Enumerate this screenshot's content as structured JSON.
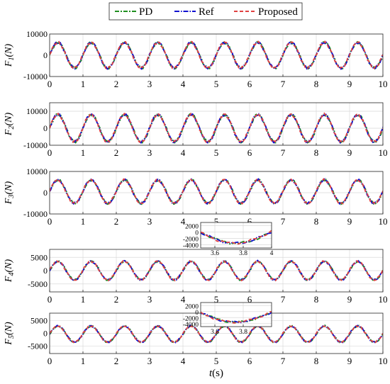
{
  "chart_data": [
    {
      "type": "line",
      "title": "",
      "ylabel": "F_1(N)",
      "xlabel": "",
      "xlim": [
        0,
        10
      ],
      "ylim": [
        -10000,
        10000
      ],
      "grid": true,
      "xticks": [
        "0",
        "1",
        "2",
        "3",
        "4",
        "5",
        "6",
        "7",
        "8",
        "9",
        "10"
      ],
      "yticks": [
        "10000",
        "0",
        "-10000"
      ],
      "series": [
        {
          "name": "PD",
          "color": "#1f8f1f",
          "amplitude": 6000,
          "offset": 0,
          "period": 1,
          "phase": 0
        },
        {
          "name": "Ref",
          "color": "#1010d0",
          "amplitude": 6000,
          "offset": 0,
          "period": 1,
          "phase": 0
        },
        {
          "name": "Proposed",
          "color": "#e04040",
          "amplitude": 6000,
          "offset": 0,
          "period": 1,
          "phase": 0
        }
      ]
    },
    {
      "type": "line",
      "title": "",
      "ylabel": "F_2(N)",
      "xlabel": "",
      "xlim": [
        0,
        10
      ],
      "ylim": [
        -10000,
        15000
      ],
      "grid": true,
      "xticks": [
        "0",
        "1",
        "2",
        "3",
        "4",
        "5",
        "6",
        "7",
        "8",
        "9",
        "10"
      ],
      "yticks": [
        "10000",
        "0",
        "-10000"
      ],
      "series": [
        {
          "name": "PD",
          "color": "#1f8f1f",
          "amplitude": 8000,
          "offset": 0,
          "period": 1,
          "phase": 0
        },
        {
          "name": "Ref",
          "color": "#1010d0",
          "amplitude": 8000,
          "offset": 0,
          "period": 1,
          "phase": 0
        },
        {
          "name": "Proposed",
          "color": "#e04040",
          "amplitude": 8000,
          "offset": 0,
          "period": 1,
          "phase": 0
        }
      ]
    },
    {
      "type": "line",
      "title": "",
      "ylabel": "F_3(N)",
      "xlabel": "",
      "xlim": [
        0,
        10
      ],
      "ylim": [
        -10000,
        10000
      ],
      "grid": true,
      "xticks": [
        "0",
        "1",
        "2",
        "3",
        "4",
        "5",
        "6",
        "7",
        "8",
        "9",
        "10"
      ],
      "yticks": [
        "10000",
        "0",
        "-10000"
      ],
      "series": [
        {
          "name": "PD",
          "color": "#1f8f1f",
          "amplitude": 5500,
          "offset": 500,
          "period": 1,
          "phase": 0
        },
        {
          "name": "Ref",
          "color": "#1010d0",
          "amplitude": 5500,
          "offset": 500,
          "period": 1,
          "phase": 0
        },
        {
          "name": "Proposed",
          "color": "#e04040",
          "amplitude": 5500,
          "offset": 500,
          "period": 1,
          "phase": 0
        }
      ]
    },
    {
      "type": "line",
      "title": "",
      "ylabel": "F_4(N)",
      "xlabel": "",
      "xlim": [
        0,
        10
      ],
      "ylim": [
        -8000,
        8000
      ],
      "grid": true,
      "xticks": [
        "0",
        "1",
        "2",
        "3",
        "4",
        "5",
        "6",
        "7",
        "8",
        "9",
        "10"
      ],
      "yticks": [
        "5000",
        "0",
        "-5000"
      ],
      "series": [
        {
          "name": "PD",
          "color": "#1f8f1f",
          "amplitude": 3500,
          "offset": 0,
          "period": 1,
          "phase": 0
        },
        {
          "name": "Ref",
          "color": "#1010d0",
          "amplitude": 3500,
          "offset": 0,
          "period": 1,
          "phase": 0
        },
        {
          "name": "Proposed",
          "color": "#e04040",
          "amplitude": 3500,
          "offset": 0,
          "period": 1,
          "phase": 0
        }
      ],
      "inset": {
        "xlim": [
          3.5,
          4.0
        ],
        "ylim": [
          -5000,
          3000
        ],
        "xticks": [
          "3.6",
          "3.8",
          "4"
        ],
        "yticks": [
          "2000",
          "0",
          "-2000",
          "-4000"
        ]
      }
    },
    {
      "type": "line",
      "title": "",
      "ylabel": "F_5(N)",
      "xlabel": "t(s)",
      "xlim": [
        0,
        10
      ],
      "ylim": [
        -8000,
        8000
      ],
      "grid": true,
      "xticks": [
        "0",
        "1",
        "2",
        "3",
        "4",
        "5",
        "6",
        "7",
        "8",
        "9",
        "10"
      ],
      "yticks": [
        "5000",
        "0",
        "-5000"
      ],
      "series": [
        {
          "name": "PD",
          "color": "#1f8f1f",
          "amplitude": 3200,
          "offset": -300,
          "period": 1,
          "phase": 0
        },
        {
          "name": "Ref",
          "color": "#1010d0",
          "amplitude": 3200,
          "offset": -300,
          "period": 1,
          "phase": 0
        },
        {
          "name": "Proposed",
          "color": "#e04040",
          "amplitude": 3200,
          "offset": -300,
          "period": 1,
          "phase": 0
        }
      ],
      "inset": {
        "xlim": [
          3.5,
          4.0
        ],
        "ylim": [
          -5000,
          3000
        ],
        "xticks": [
          "3.6",
          "3.8"
        ],
        "yticks": [
          "2000",
          "0",
          "-2000",
          "-4000"
        ]
      }
    }
  ],
  "legend": {
    "placement": "top-center",
    "entries": [
      "PD",
      "Ref",
      "Proposed"
    ]
  },
  "axis_labels": {
    "x_prefix": "t",
    "x_unit": "(s)",
    "y_names": [
      "1",
      "2",
      "3",
      "4",
      "5"
    ],
    "y_unit": "(N)",
    "y_letter": "F"
  }
}
